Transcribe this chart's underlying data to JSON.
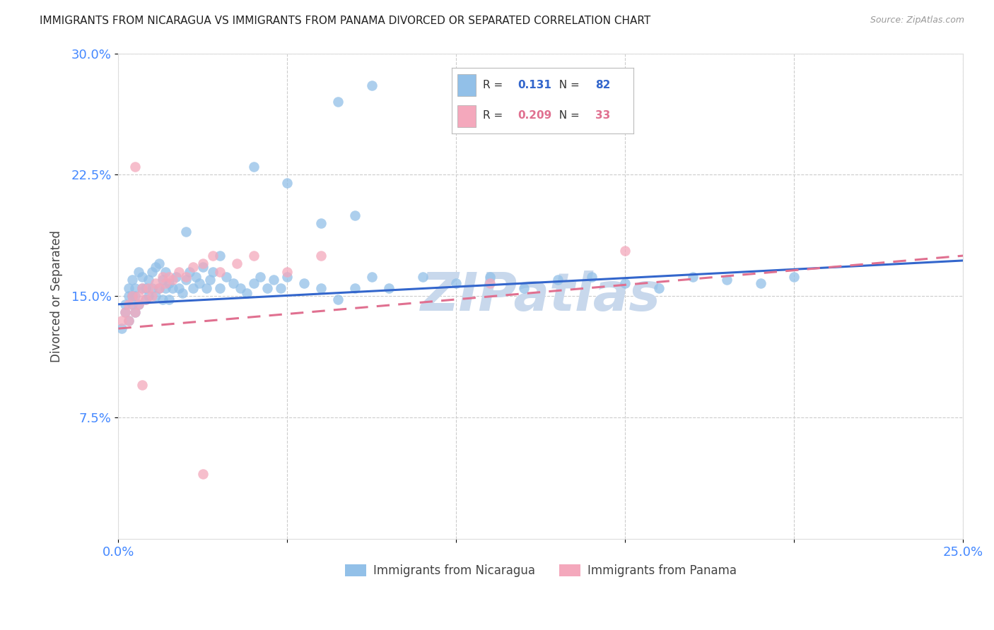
{
  "title": "IMMIGRANTS FROM NICARAGUA VS IMMIGRANTS FROM PANAMA DIVORCED OR SEPARATED CORRELATION CHART",
  "source": "Source: ZipAtlas.com",
  "ylabel": "Divorced or Separated",
  "legend1_label": "Immigrants from Nicaragua",
  "legend2_label": "Immigrants from Panama",
  "R1": 0.131,
  "N1": 82,
  "R2": 0.209,
  "N2": 33,
  "xlim": [
    0.0,
    0.25
  ],
  "ylim": [
    0.0,
    0.3
  ],
  "xticks": [
    0.0,
    0.05,
    0.1,
    0.15,
    0.2,
    0.25
  ],
  "xtick_labels": [
    "0.0%",
    "",
    "",
    "",
    "",
    "25.0%"
  ],
  "yticks": [
    0.075,
    0.15,
    0.225,
    0.3
  ],
  "ytick_labels": [
    "7.5%",
    "15.0%",
    "22.5%",
    "30.0%"
  ],
  "color1": "#92C0E8",
  "color2": "#F4A8BC",
  "line1_color": "#3366CC",
  "line2_color": "#E07090",
  "watermark": "ZIPatlas",
  "watermark_color": "#C8D8EC",
  "background_color": "#FFFFFF",
  "grid_color": "#CCCCCC",
  "title_color": "#222222",
  "axis_label_color": "#4488FF",
  "nic_line_x0": 0.0,
  "nic_line_y0": 0.145,
  "nic_line_x1": 0.25,
  "nic_line_y1": 0.172,
  "pan_line_x0": 0.0,
  "pan_line_y0": 0.13,
  "pan_line_x1": 0.25,
  "pan_line_y1": 0.175,
  "nicaragua_x": [
    0.001,
    0.002,
    0.002,
    0.003,
    0.003,
    0.003,
    0.004,
    0.004,
    0.004,
    0.005,
    0.005,
    0.005,
    0.006,
    0.006,
    0.007,
    0.007,
    0.008,
    0.008,
    0.009,
    0.009,
    0.01,
    0.01,
    0.011,
    0.011,
    0.012,
    0.012,
    0.013,
    0.013,
    0.014,
    0.014,
    0.015,
    0.015,
    0.016,
    0.017,
    0.018,
    0.019,
    0.02,
    0.021,
    0.022,
    0.023,
    0.024,
    0.025,
    0.026,
    0.027,
    0.028,
    0.03,
    0.032,
    0.034,
    0.036,
    0.038,
    0.04,
    0.042,
    0.044,
    0.046,
    0.048,
    0.05,
    0.055,
    0.06,
    0.065,
    0.07,
    0.075,
    0.08,
    0.09,
    0.1,
    0.11,
    0.12,
    0.13,
    0.14,
    0.15,
    0.16,
    0.17,
    0.18,
    0.19,
    0.2,
    0.065,
    0.075,
    0.05,
    0.04,
    0.03,
    0.02,
    0.06,
    0.07
  ],
  "nicaragua_y": [
    0.13,
    0.14,
    0.145,
    0.135,
    0.15,
    0.155,
    0.145,
    0.15,
    0.16,
    0.14,
    0.15,
    0.155,
    0.145,
    0.165,
    0.155,
    0.162,
    0.148,
    0.155,
    0.15,
    0.16,
    0.155,
    0.165,
    0.15,
    0.168,
    0.155,
    0.17,
    0.148,
    0.16,
    0.155,
    0.165,
    0.148,
    0.158,
    0.155,
    0.162,
    0.155,
    0.152,
    0.16,
    0.165,
    0.155,
    0.162,
    0.158,
    0.168,
    0.155,
    0.16,
    0.165,
    0.155,
    0.162,
    0.158,
    0.155,
    0.152,
    0.158,
    0.162,
    0.155,
    0.16,
    0.155,
    0.162,
    0.158,
    0.155,
    0.148,
    0.155,
    0.162,
    0.155,
    0.162,
    0.158,
    0.162,
    0.155,
    0.16,
    0.162,
    0.158,
    0.155,
    0.162,
    0.16,
    0.158,
    0.162,
    0.27,
    0.28,
    0.22,
    0.23,
    0.175,
    0.19,
    0.195,
    0.2
  ],
  "panama_x": [
    0.001,
    0.002,
    0.003,
    0.003,
    0.004,
    0.005,
    0.006,
    0.006,
    0.007,
    0.008,
    0.009,
    0.01,
    0.011,
    0.012,
    0.013,
    0.014,
    0.015,
    0.016,
    0.018,
    0.02,
    0.022,
    0.025,
    0.028,
    0.03,
    0.035,
    0.04,
    0.05,
    0.06,
    0.11,
    0.15,
    0.005,
    0.007,
    0.025
  ],
  "panama_y": [
    0.135,
    0.14,
    0.145,
    0.135,
    0.15,
    0.14,
    0.15,
    0.145,
    0.155,
    0.148,
    0.155,
    0.15,
    0.158,
    0.155,
    0.162,
    0.158,
    0.162,
    0.16,
    0.165,
    0.162,
    0.168,
    0.17,
    0.175,
    0.165,
    0.17,
    0.175,
    0.165,
    0.175,
    0.158,
    0.178,
    0.23,
    0.095,
    0.04
  ]
}
